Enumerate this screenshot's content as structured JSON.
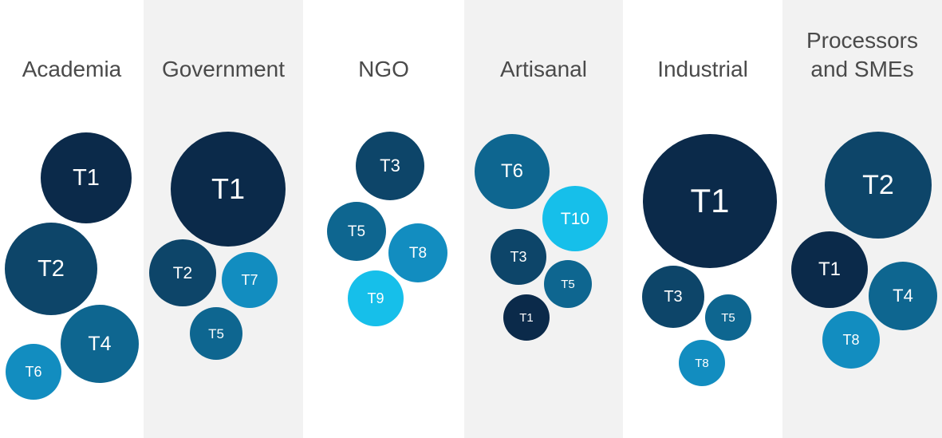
{
  "colors": {
    "navy": "#0b2a4a",
    "deep-blue": "#0d4569",
    "steel-blue": "#0e6690",
    "medium-blue": "#128dc0",
    "sky-blue": "#16bfea",
    "column-shade": "#f2f2f2",
    "title": "#4a4a4a"
  },
  "columns": [
    {
      "title": [
        "Academia"
      ],
      "shaded": false,
      "bubbles": [
        {
          "label": "T1",
          "color": "navy"
        },
        {
          "label": "T2",
          "color": "deep-blue"
        },
        {
          "label": "T4",
          "color": "steel-blue"
        },
        {
          "label": "T6",
          "color": "medium-blue"
        }
      ]
    },
    {
      "title": [
        "Government"
      ],
      "shaded": true,
      "bubbles": [
        {
          "label": "T1",
          "color": "navy"
        },
        {
          "label": "T2",
          "color": "deep-blue"
        },
        {
          "label": "T7",
          "color": "medium-blue"
        },
        {
          "label": "T5",
          "color": "steel-blue"
        }
      ]
    },
    {
      "title": [
        "NGO"
      ],
      "shaded": false,
      "bubbles": [
        {
          "label": "T3",
          "color": "deep-blue"
        },
        {
          "label": "T5",
          "color": "steel-blue"
        },
        {
          "label": "T8",
          "color": "medium-blue"
        },
        {
          "label": "T9",
          "color": "sky-blue"
        }
      ]
    },
    {
      "title": [
        "Artisanal"
      ],
      "shaded": true,
      "bubbles": [
        {
          "label": "T6",
          "color": "steel-blue"
        },
        {
          "label": "T10",
          "color": "sky-blue"
        },
        {
          "label": "T3",
          "color": "deep-blue"
        },
        {
          "label": "T5",
          "color": "steel-blue"
        },
        {
          "label": "T1",
          "color": "navy"
        }
      ]
    },
    {
      "title": [
        "Industrial"
      ],
      "shaded": false,
      "bubbles": [
        {
          "label": "T1",
          "color": "navy"
        },
        {
          "label": "T3",
          "color": "deep-blue"
        },
        {
          "label": "T5",
          "color": "steel-blue"
        },
        {
          "label": "T8",
          "color": "medium-blue"
        }
      ]
    },
    {
      "title": [
        "Processors",
        "and SMEs"
      ],
      "shaded": true,
      "bubbles": [
        {
          "label": "T2",
          "color": "deep-blue"
        },
        {
          "label": "T1",
          "color": "navy"
        },
        {
          "label": "T4",
          "color": "steel-blue"
        },
        {
          "label": "T8",
          "color": "medium-blue"
        }
      ]
    }
  ]
}
